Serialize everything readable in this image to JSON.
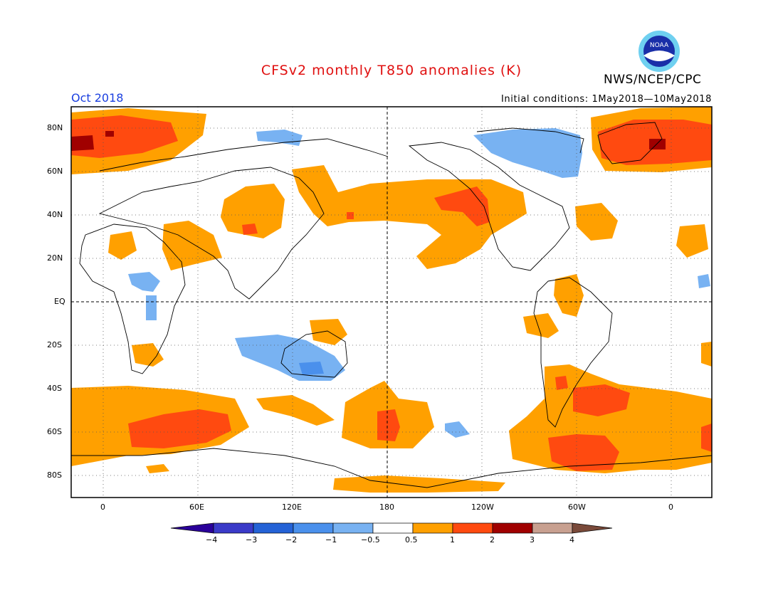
{
  "header": {
    "title": "CFSv2 monthly T850 anomalies (K)",
    "agency": "NWS/NCEP/CPC",
    "period": "Oct 2018",
    "initial_conditions": "Initial conditions: 1May2018—10May2018",
    "logo_text": "NOAA"
  },
  "colors": {
    "title": "#e01010",
    "period": "#1a3fe0",
    "minus4_plus": "#2a009a",
    "minus4_minus3": "#3a3ac8",
    "minus3_minus2": "#2462d6",
    "minus2_minus1": "#4a90ec",
    "minus1_minus05": "#78b2f2",
    "neutral": "#ffffff",
    "p05_1": "#ffa000",
    "p1_2": "#ff4a10",
    "p2_3": "#a00000",
    "p3_4": "#c8a090",
    "p4_plus": "#7a4a3a"
  },
  "map": {
    "lat_labels": [
      "80N",
      "60N",
      "40N",
      "20N",
      "EQ",
      "20S",
      "40S",
      "60S",
      "80S"
    ],
    "lon_labels": [
      "0",
      "60E",
      "120E",
      "180",
      "120W",
      "60W",
      "0"
    ]
  },
  "colorbar": {
    "labels": [
      "−4",
      "−3",
      "−2",
      "−1",
      "−0.5",
      "0.5",
      "1",
      "2",
      "3",
      "4"
    ]
  }
}
